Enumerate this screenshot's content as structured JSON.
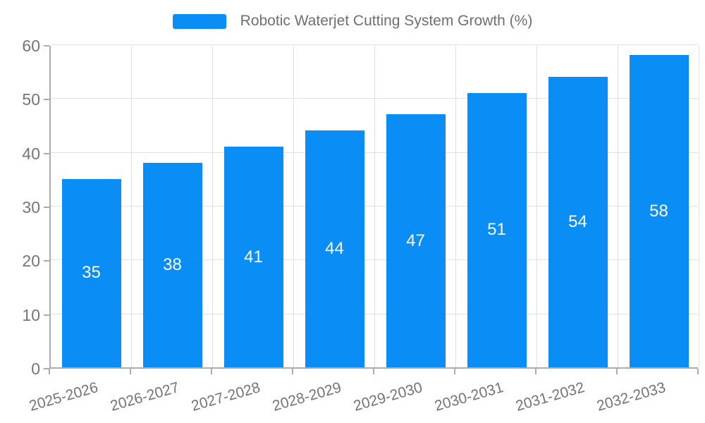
{
  "chart_data": {
    "type": "bar",
    "title": "Robotic Waterjet Cutting System Growth (%)",
    "categories": [
      "2025-2026",
      "2026-2027",
      "2027-2028",
      "2028-2029",
      "2029-2030",
      "2030-2031",
      "2031-2032",
      "2032-2033"
    ],
    "values": [
      35,
      38,
      41,
      44,
      47,
      51,
      54,
      58
    ],
    "xlabel": "",
    "ylabel": "",
    "ylim": [
      0,
      60
    ],
    "yticks": [
      0,
      10,
      20,
      30,
      40,
      50,
      60
    ],
    "grid": true,
    "legend_position": "top",
    "bar_color": "#0a8df5",
    "value_label_color": "#ffffff",
    "axis_text_color": "#757575",
    "legend_text_color": "#6f6f6f",
    "axis_line_color": "#acacac",
    "gridline_color": "#e0e0e0"
  },
  "legend": {
    "label": "Robotic Waterjet Cutting System Growth (%)"
  }
}
